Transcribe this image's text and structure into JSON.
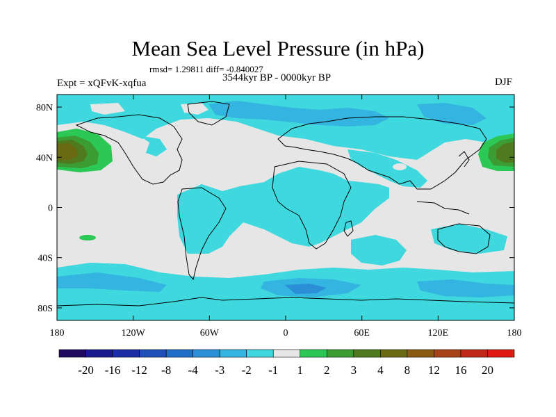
{
  "header": {
    "title": "Mean Sea Level Pressure (in hPa)",
    "stats": "rmsd= 1.29811 diff= -0.840027",
    "period": "3544kyr BP - 0000kyr BP",
    "experiment": "Expt = xQFvK-xqfua",
    "season": "DJF"
  },
  "axes": {
    "lat_labels": [
      "80N",
      "40N",
      "0",
      "40S",
      "80S"
    ],
    "lat_values": [
      80,
      40,
      0,
      -40,
      -80
    ],
    "lon_labels": [
      "180",
      "120W",
      "60W",
      "0",
      "60E",
      "120E",
      "180"
    ],
    "lon_values": [
      -180,
      -120,
      -60,
      0,
      60,
      120,
      180
    ],
    "lat_range": [
      -90,
      90
    ],
    "lon_range": [
      -180,
      180
    ]
  },
  "colorbar": {
    "labels": [
      "-20",
      "-16",
      "-12",
      "-8",
      "-4",
      "-3",
      "-2",
      "-1",
      "1",
      "2",
      "3",
      "4",
      "8",
      "12",
      "16",
      "20"
    ],
    "colors": [
      "#1e0b5e",
      "#1a1a8c",
      "#1a2fa5",
      "#1f4fb8",
      "#1f6fc8",
      "#2b8fd8",
      "#34b4e0",
      "#3fd8de",
      "#e6e6e6",
      "#2bc855",
      "#3a9c32",
      "#4f7a1e",
      "#6a6a12",
      "#8a5a12",
      "#a84218",
      "#c02818",
      "#e01a12"
    ]
  },
  "colors": {
    "neutral": "#e6e6e6",
    "light_neg": "#3fd8de",
    "mid_neg": "#34b4e0",
    "deep_neg": "#2b8fd8",
    "pos_1": "#2bc855",
    "pos_2": "#3a9c32",
    "pos_3": "#4f7a1e",
    "pos_4": "#6a6a12"
  }
}
